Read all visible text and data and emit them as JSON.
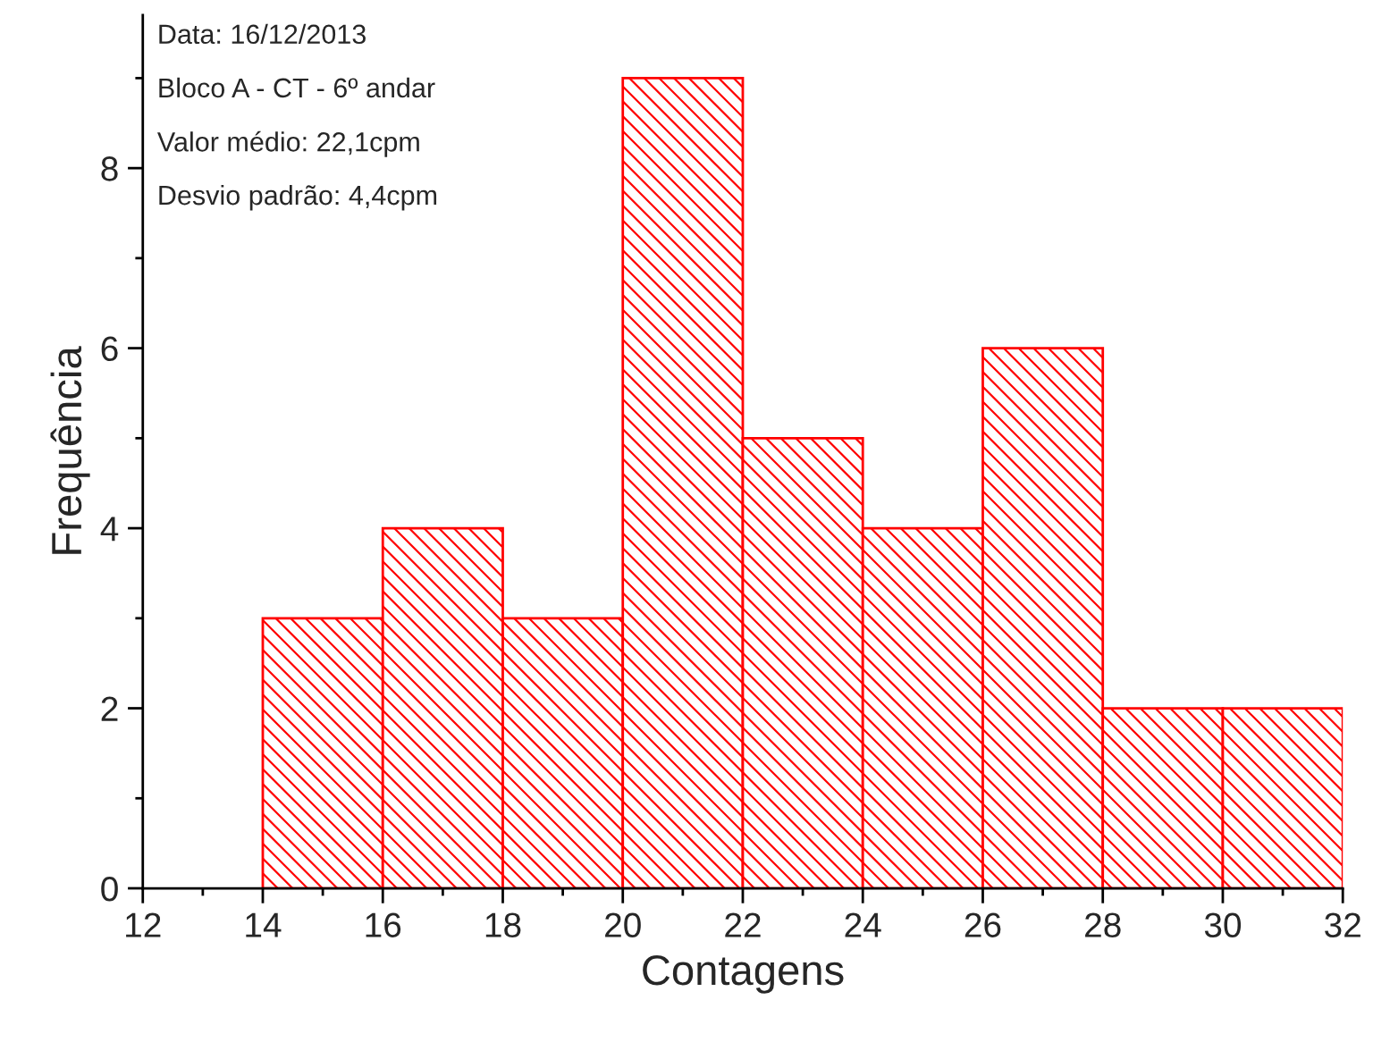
{
  "chart_data": {
    "type": "histogram",
    "xlabel": "Contagens",
    "ylabel": "Frequência",
    "bins": [
      14,
      16,
      18,
      20,
      22,
      24,
      26,
      28,
      30,
      32
    ],
    "values": [
      3,
      4,
      3,
      9,
      5,
      4,
      6,
      2,
      2
    ],
    "color": "#ff0000",
    "xlim": [
      12,
      32
    ],
    "xticks": [
      12,
      14,
      16,
      18,
      20,
      22,
      24,
      26,
      28,
      30,
      32
    ],
    "ylim": [
      0,
      9.7
    ],
    "yticks": [
      0,
      2,
      4,
      6,
      8
    ],
    "grid": false,
    "legend": false,
    "annotations": [
      "Data: 16/12/2013",
      "Bloco A - CT - 6º andar",
      "Valor médio: 22,1cpm",
      "Desvio padrão: 4,4cpm"
    ]
  }
}
